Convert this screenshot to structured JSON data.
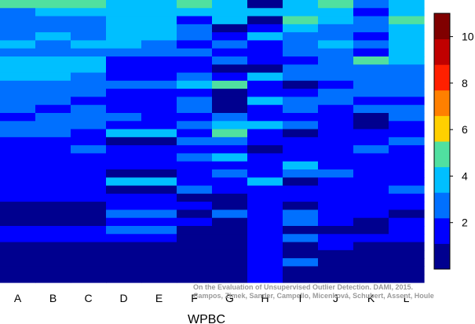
{
  "chart_data": {
    "type": "heatmap",
    "title": "",
    "xlabel": "WPBC",
    "ylabel": "",
    "categories": [
      "A",
      "B",
      "C",
      "D",
      "E",
      "F",
      "G",
      "H",
      "I",
      "J",
      "K",
      "L"
    ],
    "colorbar": {
      "min": 0,
      "max": 11,
      "ticks": [
        2,
        4,
        6,
        8,
        10
      ],
      "colors": [
        "#00008f",
        "#0000ff",
        "#0070ff",
        "#00bfff",
        "#50e0a0",
        "#ffd000",
        "#ff8000",
        "#ff2000",
        "#c00000",
        "#800000"
      ]
    },
    "columns": [
      {
        "name": "A",
        "values": [
          5.0,
          3.0,
          3.0,
          3.0,
          3.0,
          3.5,
          3.0,
          3.5,
          4.0,
          3.5,
          3.0,
          3.0,
          3.0,
          3.0,
          2.0,
          3.0,
          3.0,
          2.0,
          2.0,
          2.0,
          2.0,
          1.5,
          1.5,
          1.5,
          1.5,
          1.0,
          1.0,
          1.0,
          1.5,
          1.5,
          1.0,
          1.0,
          1.0,
          1.0,
          1.0
        ]
      },
      {
        "name": "B",
        "values": [
          5.0,
          3.5,
          3.0,
          3.0,
          3.5,
          3.0,
          3.0,
          3.5,
          3.5,
          3.5,
          3.0,
          3.0,
          3.0,
          2.0,
          3.0,
          3.0,
          3.0,
          2.0,
          2.0,
          2.0,
          2.0,
          1.5,
          1.5,
          1.5,
          1.5,
          1.0,
          1.0,
          1.0,
          1.5,
          1.5,
          1.0,
          1.0,
          1.0,
          1.0,
          1.0
        ]
      },
      {
        "name": "C",
        "values": [
          4.5,
          3.5,
          3.0,
          3.0,
          3.0,
          3.5,
          3.0,
          3.5,
          3.5,
          3.0,
          3.0,
          3.0,
          2.0,
          3.0,
          3.0,
          3.0,
          2.0,
          2.0,
          3.0,
          2.0,
          2.0,
          1.5,
          1.5,
          1.5,
          1.5,
          1.0,
          1.0,
          1.0,
          1.5,
          1.5,
          1.0,
          1.0,
          1.0,
          1.0,
          1.0
        ]
      },
      {
        "name": "D",
        "values": [
          4.0,
          4.0,
          3.5,
          3.5,
          3.5,
          3.5,
          3.0,
          2.0,
          2.0,
          2.0,
          3.0,
          2.0,
          2.0,
          2.0,
          3.0,
          2.0,
          4.0,
          1.0,
          2.0,
          2.0,
          1.5,
          1.0,
          4.0,
          1.0,
          2.0,
          2.0,
          3.0,
          1.5,
          2.5,
          1.5,
          1.0,
          1.0,
          1.0,
          1.0,
          1.0
        ]
      },
      {
        "name": "E",
        "values": [
          4.0,
          4.0,
          3.5,
          3.5,
          3.5,
          3.0,
          3.0,
          2.0,
          2.0,
          2.0,
          3.0,
          2.0,
          2.0,
          2.0,
          2.0,
          2.0,
          4.0,
          1.0,
          2.0,
          2.0,
          1.5,
          1.0,
          4.0,
          1.0,
          2.0,
          2.0,
          3.0,
          1.5,
          2.5,
          1.5,
          1.0,
          1.0,
          1.0,
          1.0,
          1.0
        ]
      },
      {
        "name": "F",
        "values": [
          4.5,
          3.5,
          2.0,
          3.0,
          3.0,
          2.0,
          3.0,
          2.0,
          2.0,
          3.0,
          3.5,
          2.0,
          3.0,
          3.0,
          2.0,
          3.0,
          2.0,
          3.0,
          2.0,
          3.0,
          2.0,
          1.5,
          2.0,
          3.0,
          1.0,
          2.0,
          1.0,
          2.0,
          1.0,
          1.0,
          1.0,
          1.0,
          1.0,
          1.0,
          1.0
        ]
      },
      {
        "name": "G",
        "values": [
          4.0,
          4.0,
          4.0,
          1.0,
          2.0,
          3.0,
          2.0,
          3.0,
          1.0,
          2.0,
          4.5,
          1.0,
          1.0,
          1.0,
          3.0,
          4.0,
          5.0,
          3.0,
          2.0,
          4.0,
          2.0,
          3.0,
          2.0,
          2.0,
          1.0,
          1.0,
          3.0,
          1.0,
          1.0,
          1.0,
          1.0,
          1.0,
          1.0,
          1.0,
          1.0
        ]
      },
      {
        "name": "H",
        "values": [
          1.0,
          3.5,
          1.0,
          2.0,
          4.0,
          1.5,
          1.5,
          2.0,
          1.0,
          3.5,
          1.5,
          2.0,
          3.5,
          2.0,
          1.5,
          3.5,
          2.0,
          1.5,
          1.0,
          2.0,
          2.0,
          2.0,
          3.5,
          2.0,
          2.0,
          2.0,
          2.0,
          2.0,
          2.0,
          2.0,
          2.0,
          2.0,
          2.0,
          2.0,
          2.0
        ]
      },
      {
        "name": "I",
        "values": [
          4.0,
          3.5,
          4.5,
          3.5,
          3.0,
          3.0,
          3.0,
          2.0,
          3.0,
          3.0,
          1.0,
          2.0,
          3.0,
          3.0,
          2.0,
          3.0,
          1.0,
          2.0,
          2.0,
          2.0,
          3.5,
          3.0,
          1.0,
          1.5,
          1.5,
          1.0,
          2.5,
          3.0,
          1.0,
          2.5,
          1.0,
          1.0,
          3.0,
          1.0,
          1.0
        ]
      },
      {
        "name": "J",
        "values": [
          5.0,
          4.0,
          3.5,
          3.0,
          3.0,
          3.5,
          3.0,
          3.0,
          3.0,
          3.0,
          2.0,
          3.0,
          3.0,
          2.0,
          2.0,
          2.0,
          2.0,
          2.0,
          2.0,
          2.0,
          2.0,
          3.0,
          2.0,
          2.0,
          2.0,
          2.0,
          2.0,
          2.0,
          1.0,
          1.5,
          1.5,
          1.0,
          1.0,
          1.0,
          1.0
        ]
      },
      {
        "name": "K",
        "values": [
          3.0,
          2.0,
          3.0,
          3.0,
          2.0,
          3.0,
          2.0,
          4.5,
          3.0,
          3.0,
          3.0,
          3.0,
          2.0,
          3.0,
          1.0,
          1.0,
          2.0,
          2.0,
          3.0,
          2.0,
          2.0,
          1.5,
          2.0,
          2.0,
          2.0,
          2.0,
          2.0,
          1.0,
          1.0,
          1.5,
          1.0,
          1.0,
          1.0,
          1.0,
          1.0
        ]
      },
      {
        "name": "L",
        "values": [
          4.0,
          3.5,
          4.5,
          3.5,
          3.5,
          3.5,
          3.5,
          3.5,
          3.0,
          3.0,
          3.0,
          3.0,
          2.0,
          3.0,
          3.0,
          2.0,
          2.0,
          3.0,
          2.0,
          2.0,
          2.0,
          2.0,
          2.0,
          3.0,
          2.0,
          2.0,
          1.0,
          1.5,
          2.0,
          2.0,
          1.0,
          1.0,
          1.0,
          1.0,
          1.0
        ]
      }
    ]
  },
  "citation": {
    "line1": "On the Evaluation of Unsupervised Outlier Detection. DAMI, 2015.",
    "line2": "Campos, Zimek, Sander, Campello, Micenková, Schubert, Assent, Houle"
  }
}
